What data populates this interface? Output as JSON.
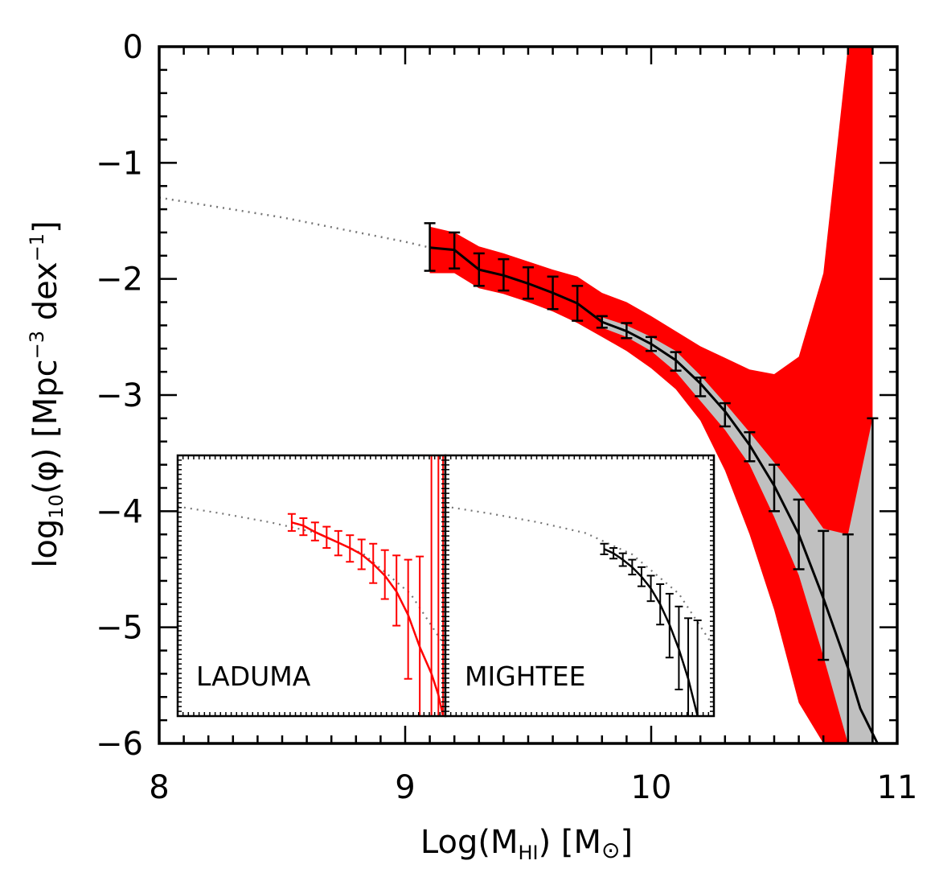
{
  "chart_data": [
    {
      "type": "line",
      "name": "main",
      "xlabel": {
        "prefix": "Log(M",
        "sub": "HI",
        "suffix": ")  [M",
        "sun": "⊙",
        "close": "]"
      },
      "ylabel": {
        "prefix": "log",
        "sub": "10",
        "mid": "(φ)  [Mpc",
        "sup1": "−3",
        "mid2": " dex",
        "sup2": "−1",
        "close": "]"
      },
      "xlim": [
        8,
        11
      ],
      "ylim": [
        -6,
        0
      ],
      "xticks": [
        8,
        9,
        10,
        11
      ],
      "xtick_labels": [
        "8",
        "9",
        "10",
        "11"
      ],
      "yticks": [
        0,
        -1,
        -2,
        -3,
        -4,
        -5,
        -6
      ],
      "ytick_labels": [
        "0",
        "−1",
        "−2",
        "−3",
        "−4",
        "−5",
        "−6"
      ],
      "model_dotted": {
        "x": [
          8.0,
          8.5,
          9.0,
          9.1
        ],
        "y": [
          -1.3,
          -1.47,
          -1.68,
          -1.73
        ]
      },
      "band_red": {
        "x": [
          9.1,
          9.2,
          9.3,
          9.4,
          9.5,
          9.6,
          9.7,
          9.8,
          9.9,
          10.0,
          10.1,
          10.2,
          10.3,
          10.4,
          10.5,
          10.6,
          10.7,
          10.8,
          10.9
        ],
        "upper": [
          -1.55,
          -1.6,
          -1.72,
          -1.78,
          -1.85,
          -1.92,
          -1.98,
          -2.12,
          -2.2,
          -2.32,
          -2.45,
          -2.58,
          -2.68,
          -2.78,
          -2.82,
          -2.67,
          -1.95,
          0.0,
          0.0
        ],
        "lower": [
          -1.95,
          -1.95,
          -2.08,
          -2.13,
          -2.2,
          -2.28,
          -2.38,
          -2.5,
          -2.62,
          -2.77,
          -2.95,
          -3.22,
          -3.65,
          -4.2,
          -4.85,
          -5.65,
          -6.0,
          -6.0,
          -6.0
        ]
      },
      "band_gray": {
        "x": [
          9.8,
          9.9,
          10.0,
          10.1,
          10.2,
          10.3,
          10.4,
          10.5,
          10.6,
          10.7,
          10.8,
          10.9
        ],
        "upper": [
          -2.33,
          -2.4,
          -2.5,
          -2.62,
          -2.83,
          -3.07,
          -3.32,
          -3.58,
          -3.85,
          -4.15,
          -4.2,
          -3.2
        ],
        "lower": [
          -2.42,
          -2.5,
          -2.62,
          -2.8,
          -3.05,
          -3.3,
          -3.6,
          -4.05,
          -4.55,
          -5.25,
          -6.0,
          -6.0
        ]
      },
      "measurements": {
        "x": [
          9.1,
          9.2,
          9.3,
          9.4,
          9.5,
          9.6,
          9.7,
          9.8,
          9.9,
          10.0,
          10.1,
          10.2,
          10.3,
          10.4,
          10.5,
          10.6,
          10.7,
          10.8,
          10.9
        ],
        "y": [
          -1.73,
          -1.75,
          -1.92,
          -1.97,
          -2.04,
          -2.12,
          -2.21,
          -2.37,
          -2.44,
          -2.55,
          -2.71,
          -2.93,
          -3.17,
          -3.42,
          -3.8,
          -4.2,
          -4.75,
          -5.4,
          -6.0
        ],
        "err_hi": [
          -1.52,
          -1.6,
          -1.78,
          -1.83,
          -1.9,
          -1.98,
          -2.06,
          -2.32,
          -2.38,
          -2.5,
          -2.63,
          -2.85,
          -3.07,
          -3.32,
          -3.6,
          -3.9,
          -4.17,
          -4.2,
          -3.2
        ],
        "err_lo": [
          -1.93,
          -1.91,
          -2.06,
          -2.1,
          -2.17,
          -2.26,
          -2.36,
          -2.42,
          -2.51,
          -2.62,
          -2.79,
          -3.01,
          -3.27,
          -3.57,
          -4.0,
          -4.5,
          -5.28,
          -6.0,
          -6.0
        ]
      },
      "fit_curve": {
        "x": [
          9.8,
          9.9,
          10.0,
          10.1,
          10.2,
          10.3,
          10.4,
          10.5,
          10.6,
          10.7,
          10.8,
          10.85,
          10.92
        ],
        "y": [
          -2.37,
          -2.45,
          -2.56,
          -2.7,
          -2.9,
          -3.14,
          -3.43,
          -3.78,
          -4.2,
          -4.75,
          -5.35,
          -5.7,
          -6.0
        ]
      }
    },
    {
      "type": "line",
      "name": "inset-laduma",
      "label": "LADUMA",
      "xlim": [
        8.0,
        9.15
      ],
      "ylim": [
        -6.0,
        -3.55
      ],
      "model_dotted": {
        "x": [
          8.0,
          8.2,
          8.4,
          8.6,
          8.8,
          9.0,
          9.15
        ],
        "y": [
          -4.03,
          -4.1,
          -4.18,
          -4.28,
          -4.48,
          -4.85,
          -5.35
        ]
      },
      "points": {
        "x": [
          8.49,
          8.54,
          8.59,
          8.64,
          8.69,
          8.74,
          8.79,
          8.84,
          8.89,
          8.94,
          8.99,
          9.04,
          9.09,
          9.12,
          9.14
        ],
        "y": [
          -4.18,
          -4.21,
          -4.27,
          -4.32,
          -4.37,
          -4.42,
          -4.48,
          -4.57,
          -4.68,
          -4.83,
          -5.05,
          -5.35,
          -5.6,
          -5.8,
          -6.0
        ],
        "err_hi": [
          -4.1,
          -4.14,
          -4.18,
          -4.22,
          -4.26,
          -4.3,
          -4.34,
          -4.38,
          -4.44,
          -4.49,
          -4.53,
          -4.5,
          -3.55,
          -3.55,
          -3.55
        ],
        "err_lo": [
          -4.26,
          -4.3,
          -4.35,
          -4.42,
          -4.49,
          -4.55,
          -4.62,
          -4.75,
          -4.9,
          -5.15,
          -5.65,
          -6.0,
          -6.0,
          -6.0,
          -6.0
        ]
      }
    },
    {
      "type": "line",
      "name": "inset-mightee",
      "label": "MIGHTEE",
      "xlim": [
        8.0,
        9.15
      ],
      "ylim": [
        -6.0,
        -3.55
      ],
      "model_dotted": {
        "x": [
          8.0,
          8.2,
          8.4,
          8.6,
          8.8,
          9.0,
          9.15
        ],
        "y": [
          -4.03,
          -4.1,
          -4.18,
          -4.28,
          -4.48,
          -4.85,
          -5.35
        ]
      },
      "points": {
        "x": [
          8.68,
          8.72,
          8.76,
          8.8,
          8.84,
          8.88,
          8.92,
          8.96,
          9.0,
          9.04,
          9.08
        ],
        "y": [
          -4.43,
          -4.47,
          -4.53,
          -4.6,
          -4.69,
          -4.8,
          -4.95,
          -5.14,
          -5.37,
          -5.65,
          -6.0
        ],
        "err_hi": [
          -4.38,
          -4.42,
          -4.47,
          -4.53,
          -4.6,
          -4.68,
          -4.76,
          -4.85,
          -4.97,
          -5.08,
          -5.1
        ],
        "err_lo": [
          -4.48,
          -4.52,
          -4.59,
          -4.67,
          -4.78,
          -4.92,
          -5.14,
          -5.45,
          -5.75,
          -6.0,
          -6.0
        ]
      }
    }
  ],
  "colors": {
    "red_band": "#ff0000",
    "gray_band": "#c0c0c0",
    "data_black": "#000000",
    "inset_red": "#ff0000",
    "dotted": "#777777"
  }
}
